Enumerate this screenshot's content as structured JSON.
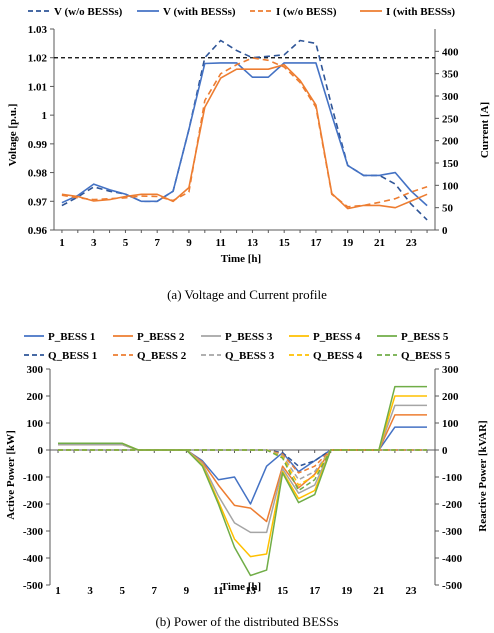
{
  "chart_data": [
    {
      "type": "line",
      "caption": "(a) Voltage and Current profile",
      "xlabel": "Time [h]",
      "ylabel_left": "Voltage [p.u.]",
      "ylabel_right": "Current [A]",
      "x": [
        1,
        2,
        3,
        4,
        5,
        6,
        7,
        8,
        9,
        10,
        11,
        12,
        13,
        14,
        15,
        16,
        17,
        18,
        19,
        20,
        21,
        22,
        23,
        24
      ],
      "x_ticks": [
        "1",
        "3",
        "5",
        "7",
        "9",
        "11",
        "13",
        "15",
        "17",
        "19",
        "21",
        "23"
      ],
      "ylim_left": [
        0.96,
        1.03
      ],
      "y_ticks_left": [
        "0.96",
        "0.97",
        "0.98",
        "0.99",
        "1",
        "1.01",
        "1.02",
        "1.03"
      ],
      "ylim_right": [
        0,
        450
      ],
      "y_ticks_right": [
        "0",
        "50",
        "100",
        "150",
        "200",
        "250",
        "300",
        "350",
        "400"
      ],
      "reference_line": {
        "value": 1.02,
        "axis": "left",
        "style": "dashed",
        "color": "#000000"
      },
      "legend_position": "top",
      "series": [
        {
          "name": "V (w/o BESSs)",
          "axis": "left",
          "style": "dashed",
          "color": "#2F5597",
          "values": [
            0.9685,
            0.9715,
            0.975,
            0.9735,
            0.9725,
            0.97,
            0.97,
            0.9735,
            0.995,
            1.02,
            1.026,
            1.0225,
            1.02,
            1.0205,
            1.021,
            1.026,
            1.025,
            1.003,
            0.9825,
            0.979,
            0.979,
            0.976,
            0.969,
            0.9635
          ]
        },
        {
          "name": "V (with BESSs)",
          "axis": "left",
          "style": "solid",
          "color": "#4472C4",
          "values": [
            0.9695,
            0.972,
            0.976,
            0.974,
            0.9725,
            0.97,
            0.97,
            0.9735,
            0.995,
            1.018,
            1.0182,
            1.0182,
            1.0132,
            1.0132,
            1.0182,
            1.0182,
            1.0182,
            1.0,
            0.9825,
            0.979,
            0.979,
            0.98,
            0.9735,
            0.9685
          ]
        },
        {
          "name": "I (w/o BESS)",
          "axis": "right",
          "style": "dashed",
          "color": "#ED7D31",
          "values": [
            78,
            72,
            68,
            70,
            72,
            76,
            75,
            66,
            85,
            290,
            350,
            370,
            385,
            380,
            365,
            330,
            275,
            80,
            52,
            55,
            62,
            70,
            85,
            97
          ]
        },
        {
          "name": "I (with BESSs)",
          "axis": "right",
          "style": "solid",
          "color": "#ED7D31",
          "values": [
            80,
            75,
            65,
            68,
            75,
            80,
            80,
            64,
            95,
            275,
            340,
            360,
            360,
            360,
            370,
            335,
            280,
            82,
            48,
            55,
            55,
            50,
            65,
            80
          ]
        }
      ]
    },
    {
      "type": "line",
      "caption": "(b) Power of the distributed BESSs",
      "xlabel": "Time [h]",
      "ylabel_left": "Active Power [kW]",
      "ylabel_right": "Reactive Power [kVAR]",
      "x": [
        1,
        2,
        3,
        4,
        5,
        6,
        7,
        8,
        9,
        10,
        11,
        12,
        13,
        14,
        15,
        16,
        17,
        18,
        19,
        20,
        21,
        22,
        23,
        24
      ],
      "x_ticks": [
        "1",
        "3",
        "5",
        "7",
        "9",
        "11",
        "13",
        "15",
        "17",
        "19",
        "21",
        "23"
      ],
      "ylim_left": [
        -500,
        300
      ],
      "y_ticks_left": [
        "300",
        "200",
        "100",
        "0",
        "-100",
        "-200",
        "-300",
        "-400",
        "-500"
      ],
      "ylim_right": [
        -500,
        300
      ],
      "y_ticks_right": [
        "300",
        "200",
        "100",
        "0",
        "-100",
        "-200",
        "-300",
        "-400",
        "-500"
      ],
      "legend_position": "top",
      "series": [
        {
          "name": "P_BESS 1",
          "style": "solid",
          "color": "#4472C4",
          "values": [
            20,
            20,
            20,
            20,
            20,
            0,
            0,
            0,
            0,
            -40,
            -110,
            -100,
            -200,
            -60,
            -10,
            -80,
            -40,
            0,
            0,
            0,
            0,
            85,
            85,
            85
          ]
        },
        {
          "name": "P_BESS 2",
          "style": "solid",
          "color": "#ED7D31",
          "values": [
            20,
            20,
            20,
            20,
            20,
            0,
            0,
            0,
            0,
            -45,
            -130,
            -205,
            -215,
            -265,
            -60,
            -140,
            -90,
            0,
            0,
            0,
            0,
            130,
            130,
            130
          ]
        },
        {
          "name": "P_BESS 3",
          "style": "solid",
          "color": "#A5A5A5",
          "values": [
            20,
            20,
            20,
            20,
            20,
            0,
            0,
            0,
            0,
            -50,
            -170,
            -270,
            -305,
            -305,
            -70,
            -160,
            -130,
            0,
            0,
            0,
            0,
            165,
            165,
            165
          ]
        },
        {
          "name": "P_BESS 4",
          "style": "solid",
          "color": "#FFC000",
          "values": [
            25,
            25,
            25,
            25,
            25,
            0,
            0,
            0,
            0,
            -55,
            -190,
            -330,
            -395,
            -385,
            -80,
            -180,
            -150,
            0,
            0,
            0,
            0,
            200,
            200,
            200
          ]
        },
        {
          "name": "P_BESS 5",
          "style": "solid",
          "color": "#70AD47",
          "values": [
            25,
            25,
            25,
            25,
            25,
            0,
            0,
            0,
            0,
            -60,
            -200,
            -360,
            -465,
            -445,
            -85,
            -195,
            -165,
            0,
            0,
            0,
            0,
            235,
            235,
            235
          ]
        },
        {
          "name": "Q_BESS 1",
          "style": "dashed",
          "color": "#2F5597",
          "values": [
            0,
            0,
            0,
            0,
            0,
            0,
            0,
            0,
            0,
            0,
            0,
            0,
            0,
            0,
            -10,
            -60,
            -40,
            0,
            0,
            0,
            0,
            0,
            0,
            0
          ]
        },
        {
          "name": "Q_BESS 2",
          "style": "dashed",
          "color": "#ED7D31",
          "values": [
            0,
            0,
            0,
            0,
            0,
            0,
            0,
            0,
            0,
            0,
            0,
            0,
            0,
            0,
            -15,
            -85,
            -60,
            0,
            0,
            0,
            0,
            0,
            0,
            0
          ]
        },
        {
          "name": "Q_BESS 3",
          "style": "dashed",
          "color": "#A5A5A5",
          "values": [
            0,
            0,
            0,
            0,
            0,
            0,
            0,
            0,
            0,
            0,
            0,
            0,
            0,
            0,
            -20,
            -110,
            -80,
            0,
            0,
            0,
            0,
            0,
            0,
            0
          ]
        },
        {
          "name": "Q_BESS 4",
          "style": "dashed",
          "color": "#FFC000",
          "values": [
            0,
            0,
            0,
            0,
            0,
            0,
            0,
            0,
            0,
            0,
            0,
            0,
            0,
            0,
            -25,
            -130,
            -95,
            0,
            0,
            0,
            0,
            0,
            0,
            0
          ]
        },
        {
          "name": "Q_BESS 5",
          "style": "dashed",
          "color": "#70AD47",
          "values": [
            0,
            0,
            0,
            0,
            0,
            0,
            0,
            0,
            0,
            0,
            0,
            0,
            0,
            0,
            -30,
            -150,
            -110,
            0,
            0,
            0,
            0,
            0,
            0,
            0
          ]
        }
      ]
    }
  ]
}
